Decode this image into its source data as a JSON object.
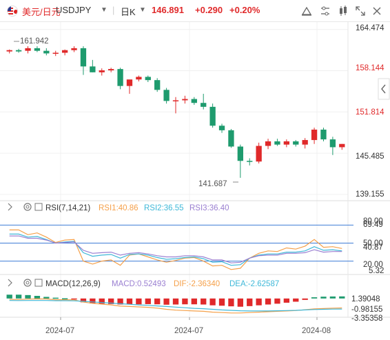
{
  "header": {
    "symbol_cn": "美元/日元",
    "symbol": "USDJPY",
    "caret": "▼",
    "timeframe": "日K",
    "timeframe_caret": "▼",
    "price": "146.891",
    "change": "+0.290",
    "change_pct": "+0.20%",
    "icons": [
      "chart-style-icon",
      "compare-icon",
      "indicator-icon",
      "fullscreen-icon",
      "close-icon"
    ]
  },
  "main_chart": {
    "y_ticks": [
      "164.474",
      "158.144",
      "151.814",
      "145.485",
      "139.155"
    ],
    "y_tick_values": [
      164.474,
      158.144,
      151.814,
      145.485,
      139.155
    ],
    "high_label": "161.942",
    "low_label": "141.687",
    "collapse_icon": "chevron-left-icon"
  },
  "rsi_panel": {
    "title": "RSI(7,14,21)",
    "rsi1_label": "RSI1:40.86",
    "rsi2_label": "RSI2:36.55",
    "rsi3_label": "RSI3:36.40",
    "levels": [
      "80.00",
      "69.49",
      "50.00",
      "40.87",
      "20.00",
      "5.32"
    ]
  },
  "macd_panel": {
    "title": "MACD(12,26,9)",
    "macd_label": "MACD:0.52493",
    "dif_label": "DIF:-2.36340",
    "dea_label": "DEA:-2.62587",
    "levels": [
      "1.39048",
      "-0.98155",
      "-3.35358"
    ]
  },
  "x_axis": {
    "labels": [
      "2024-07",
      "2024-07",
      "2024-08"
    ]
  },
  "colors": {
    "up": "#e0292a",
    "down": "#1e9b6e",
    "rsi1": "#f5a04a",
    "rsi2": "#3fb8d8",
    "rsi3": "#9a7fd1",
    "level": "#3d7bd6"
  },
  "chart_data": {
    "type": "candlestick",
    "series": [
      {
        "name": "USDJPY 日K",
        "ohlc": [
          [
            161.1,
            161.4,
            160.8,
            161.3
          ],
          [
            161.3,
            161.5,
            160.9,
            161.1
          ],
          [
            161.2,
            161.9,
            160.8,
            161.6
          ],
          [
            161.6,
            161.9,
            161.0,
            161.2
          ],
          [
            161.2,
            161.6,
            160.5,
            160.8
          ],
          [
            160.8,
            161.2,
            160.4,
            160.9
          ],
          [
            160.9,
            161.4,
            160.5,
            161.3
          ],
          [
            161.3,
            161.9,
            161.0,
            161.6
          ],
          [
            161.6,
            161.9,
            157.5,
            158.8
          ],
          [
            158.8,
            159.8,
            157.9,
            157.9
          ],
          [
            157.9,
            158.5,
            157.4,
            158.2
          ],
          [
            158.2,
            158.6,
            157.9,
            158.4
          ],
          [
            158.4,
            158.6,
            155.3,
            155.8
          ],
          [
            155.8,
            156.7,
            154.6,
            156.8
          ],
          [
            156.8,
            157.4,
            156.5,
            157.2
          ],
          [
            157.2,
            157.4,
            156.4,
            156.7
          ],
          [
            156.7,
            157.0,
            154.9,
            155.2
          ],
          [
            155.2,
            155.5,
            153.1,
            153.5
          ],
          [
            153.5,
            154.1,
            151.6,
            153.6
          ],
          [
            153.6,
            154.3,
            153.1,
            153.8
          ],
          [
            153.8,
            154.1,
            152.9,
            153.2
          ],
          [
            153.2,
            154.6,
            152.2,
            152.6
          ],
          [
            152.6,
            153.1,
            149.4,
            149.7
          ],
          [
            149.7,
            150.0,
            148.6,
            149.0
          ],
          [
            149.0,
            149.2,
            146.3,
            146.5
          ],
          [
            146.5,
            146.8,
            141.7,
            144.3
          ],
          [
            144.3,
            144.7,
            143.6,
            144.2
          ],
          [
            144.2,
            147.1,
            143.9,
            146.6
          ],
          [
            146.6,
            147.7,
            146.1,
            147.3
          ],
          [
            147.3,
            147.7,
            146.6,
            146.8
          ],
          [
            146.8,
            147.6,
            146.4,
            147.3
          ],
          [
            147.3,
            147.5,
            146.5,
            146.8
          ],
          [
            146.8,
            147.8,
            146.2,
            147.5
          ],
          [
            147.5,
            149.4,
            146.9,
            149.1
          ],
          [
            149.1,
            149.4,
            147.3,
            147.6
          ],
          [
            147.6,
            148.0,
            145.2,
            146.4
          ],
          [
            146.4,
            146.9,
            146.0,
            146.9
          ]
        ]
      }
    ],
    "y_range": [
      138.4,
      165.4
    ],
    "x_labels": [
      "2024-07",
      "2024-07",
      "2024-08"
    ],
    "rsi": {
      "y_range": [
        0,
        100
      ],
      "levels": [
        80,
        50,
        20
      ],
      "series": [
        {
          "name": "RSI1",
          "values": [
            72,
            72,
            64,
            67,
            60,
            51,
            55,
            56,
            20,
            15,
            20,
            22,
            13,
            30,
            32,
            27,
            22,
            18,
            21,
            25,
            26,
            20,
            12,
            13,
            6,
            8,
            25,
            33,
            37,
            36,
            42,
            40,
            45,
            56,
            43,
            44,
            41
          ]
        },
        {
          "name": "RSI2",
          "values": [
            65,
            65,
            60,
            61,
            56,
            50,
            52,
            53,
            34,
            28,
            30,
            31,
            25,
            31,
            32,
            30,
            26,
            23,
            24,
            26,
            27,
            24,
            18,
            19,
            13,
            14,
            25,
            30,
            32,
            32,
            35,
            35,
            37,
            44,
            38,
            39,
            37
          ]
        },
        {
          "name": "RSI3",
          "values": [
            62,
            62,
            58,
            58,
            55,
            50,
            51,
            52,
            38,
            33,
            34,
            35,
            30,
            33,
            34,
            32,
            29,
            27,
            27,
            29,
            29,
            27,
            22,
            22,
            17,
            18,
            25,
            29,
            30,
            30,
            33,
            33,
            34,
            39,
            35,
            36,
            36
          ]
        }
      ]
    },
    "macd": {
      "y_range": [
        -4.5,
        2.2
      ],
      "hist": [
        0.95,
        0.95,
        0.85,
        0.65,
        0.4,
        0.2,
        0.05,
        -0.25,
        -0.95,
        -1.25,
        -1.3,
        -1.4,
        -1.5,
        -1.5,
        -1.45,
        -1.4,
        -1.45,
        -1.55,
        -1.5,
        -1.45,
        -1.45,
        -1.5,
        -1.7,
        -1.8,
        -1.95,
        -2.05,
        -1.9,
        -1.7,
        -1.5,
        -1.3,
        -1.05,
        -0.8,
        -0.35,
        0.3,
        0.45,
        0.5,
        0.52
      ],
      "dif": [
        -0.2,
        -0.25,
        -0.15,
        -0.1,
        -0.12,
        -0.3,
        -0.3,
        -0.35,
        -0.9,
        -1.2,
        -1.4,
        -1.6,
        -1.9,
        -2.0,
        -2.1,
        -2.2,
        -2.4,
        -2.7,
        -2.9,
        -3.0,
        -3.1,
        -3.2,
        -3.4,
        -3.5,
        -3.6,
        -3.6,
        -3.5,
        -3.4,
        -3.3,
        -3.2,
        -3.1,
        -3.0,
        -2.8,
        -2.6,
        -2.5,
        -2.4,
        -2.36
      ],
      "dea": [
        -0.5,
        -0.52,
        -0.5,
        -0.5,
        -0.5,
        -0.55,
        -0.55,
        -0.58,
        -0.7,
        -0.85,
        -1.0,
        -1.15,
        -1.3,
        -1.45,
        -1.6,
        -1.7,
        -1.85,
        -2.0,
        -2.15,
        -2.3,
        -2.45,
        -2.55,
        -2.7,
        -2.85,
        -2.95,
        -3.05,
        -3.1,
        -3.1,
        -3.1,
        -3.05,
        -3.0,
        -2.95,
        -2.85,
        -2.75,
        -2.7,
        -2.65,
        -2.63
      ]
    }
  }
}
